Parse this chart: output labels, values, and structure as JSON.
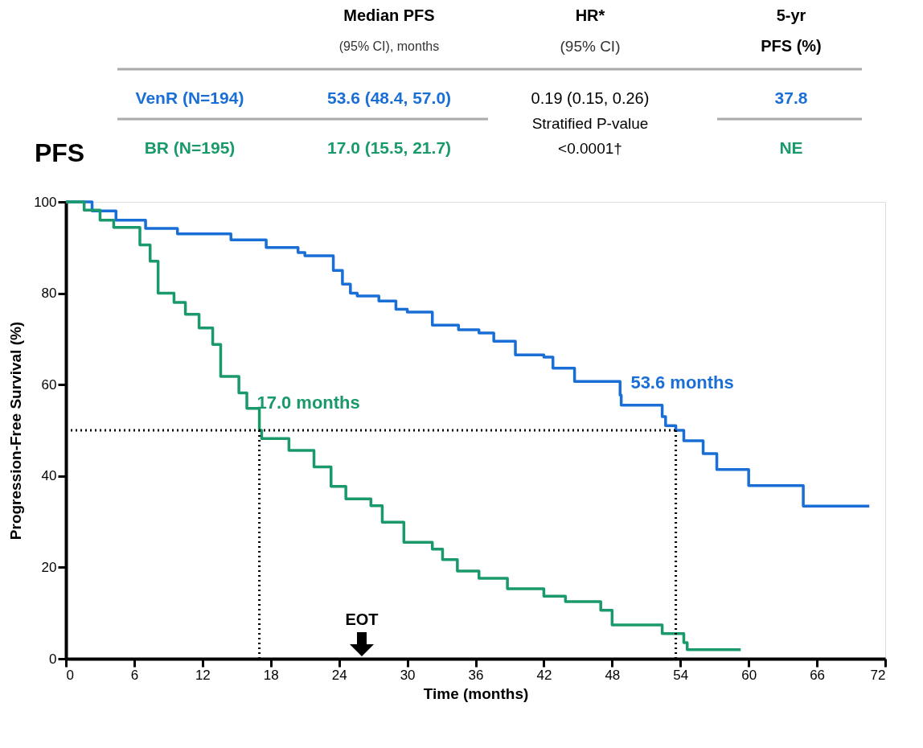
{
  "chart_data": {
    "type": "step",
    "title": "PFS",
    "xlabel": "Time (months)",
    "ylabel": "Progression-Free Survival (%)",
    "xlim": [
      0,
      72
    ],
    "xticks": [
      0,
      6,
      12,
      18,
      24,
      30,
      36,
      42,
      48,
      54,
      60,
      66,
      72
    ],
    "ylim": [
      0,
      100
    ],
    "yticks": [
      0,
      20,
      40,
      60,
      80,
      100
    ],
    "grid": false,
    "line_style": "solid",
    "series": [
      {
        "name": "VenR (N=194)",
        "color": "#1a6fd6",
        "x": [
          0,
          2.3,
          4.4,
          7,
          9.8,
          14.5,
          17.6,
          20.4,
          21,
          23.5,
          24.3,
          25,
          25.6,
          27.5,
          29,
          30,
          32.2,
          34.5,
          36.3,
          37.6,
          39.5,
          42,
          42.8,
          44.7,
          48.7,
          48.8,
          52.4,
          52.7,
          53.6,
          54.3,
          56,
          57.2,
          60,
          64.8,
          70.6
        ],
        "values": [
          100,
          98,
          96,
          94.2,
          93,
          91.7,
          90,
          88.9,
          88.2,
          85,
          82,
          80,
          79.4,
          78.3,
          76.5,
          75.9,
          73,
          72,
          71.3,
          69.5,
          66.5,
          66,
          63.6,
          60.7,
          57.7,
          55.5,
          53,
          51,
          50,
          47.7,
          44.9,
          41.4,
          37.9,
          33.4,
          33.4
        ]
      },
      {
        "name": "BR (N=195)",
        "color": "#1a9a6a",
        "x": [
          0,
          1.6,
          3,
          4.2,
          6.5,
          7.4,
          8.1,
          9.5,
          10.5,
          11.7,
          12.9,
          13.6,
          15.2,
          15.9,
          17,
          17.2,
          19.6,
          21.8,
          23.3,
          24.6,
          26.8,
          27.8,
          29.7,
          32.2,
          33.1,
          34.4,
          36.3,
          38.8,
          42,
          43.9,
          47,
          48,
          52.4,
          54.3,
          54.6,
          59.3
        ],
        "values": [
          100,
          98.2,
          96,
          94.4,
          90.6,
          87,
          80,
          78,
          75.4,
          72.4,
          68.8,
          61.8,
          58.2,
          54.8,
          50,
          48.2,
          45.6,
          42,
          37.7,
          35,
          33.5,
          29.9,
          25.5,
          24,
          21.7,
          19.2,
          17.6,
          15.3,
          13.7,
          12.5,
          10.6,
          7.4,
          5.5,
          3.5,
          2,
          2
        ]
      }
    ],
    "ref_lines": [
      {
        "axis": "y",
        "value": 50,
        "label": null,
        "line_style": "dotted"
      },
      {
        "axis": "x",
        "value": 17.0,
        "label": null,
        "line_style": "dotted"
      },
      {
        "axis": "x",
        "value": 53.6,
        "label": null,
        "line_style": "dotted"
      }
    ],
    "annotations": [
      "Median PFS",
      "(95% CI), months",
      "HR*",
      "(95% CI)",
      "5-yr",
      "PFS (%)",
      "53.6 (48.4, 57.0)",
      "0.19 (0.15, 0.26)",
      "37.8",
      "17.0 (15.5, 21.7)",
      "Stratified P-value",
      "<0.0001†",
      "NE",
      {
        "text": "17.0 months",
        "x": 17.0,
        "y": 50
      },
      {
        "text": "53.6 months",
        "x": 53.6,
        "y": 50
      },
      "EOT"
    ]
  }
}
